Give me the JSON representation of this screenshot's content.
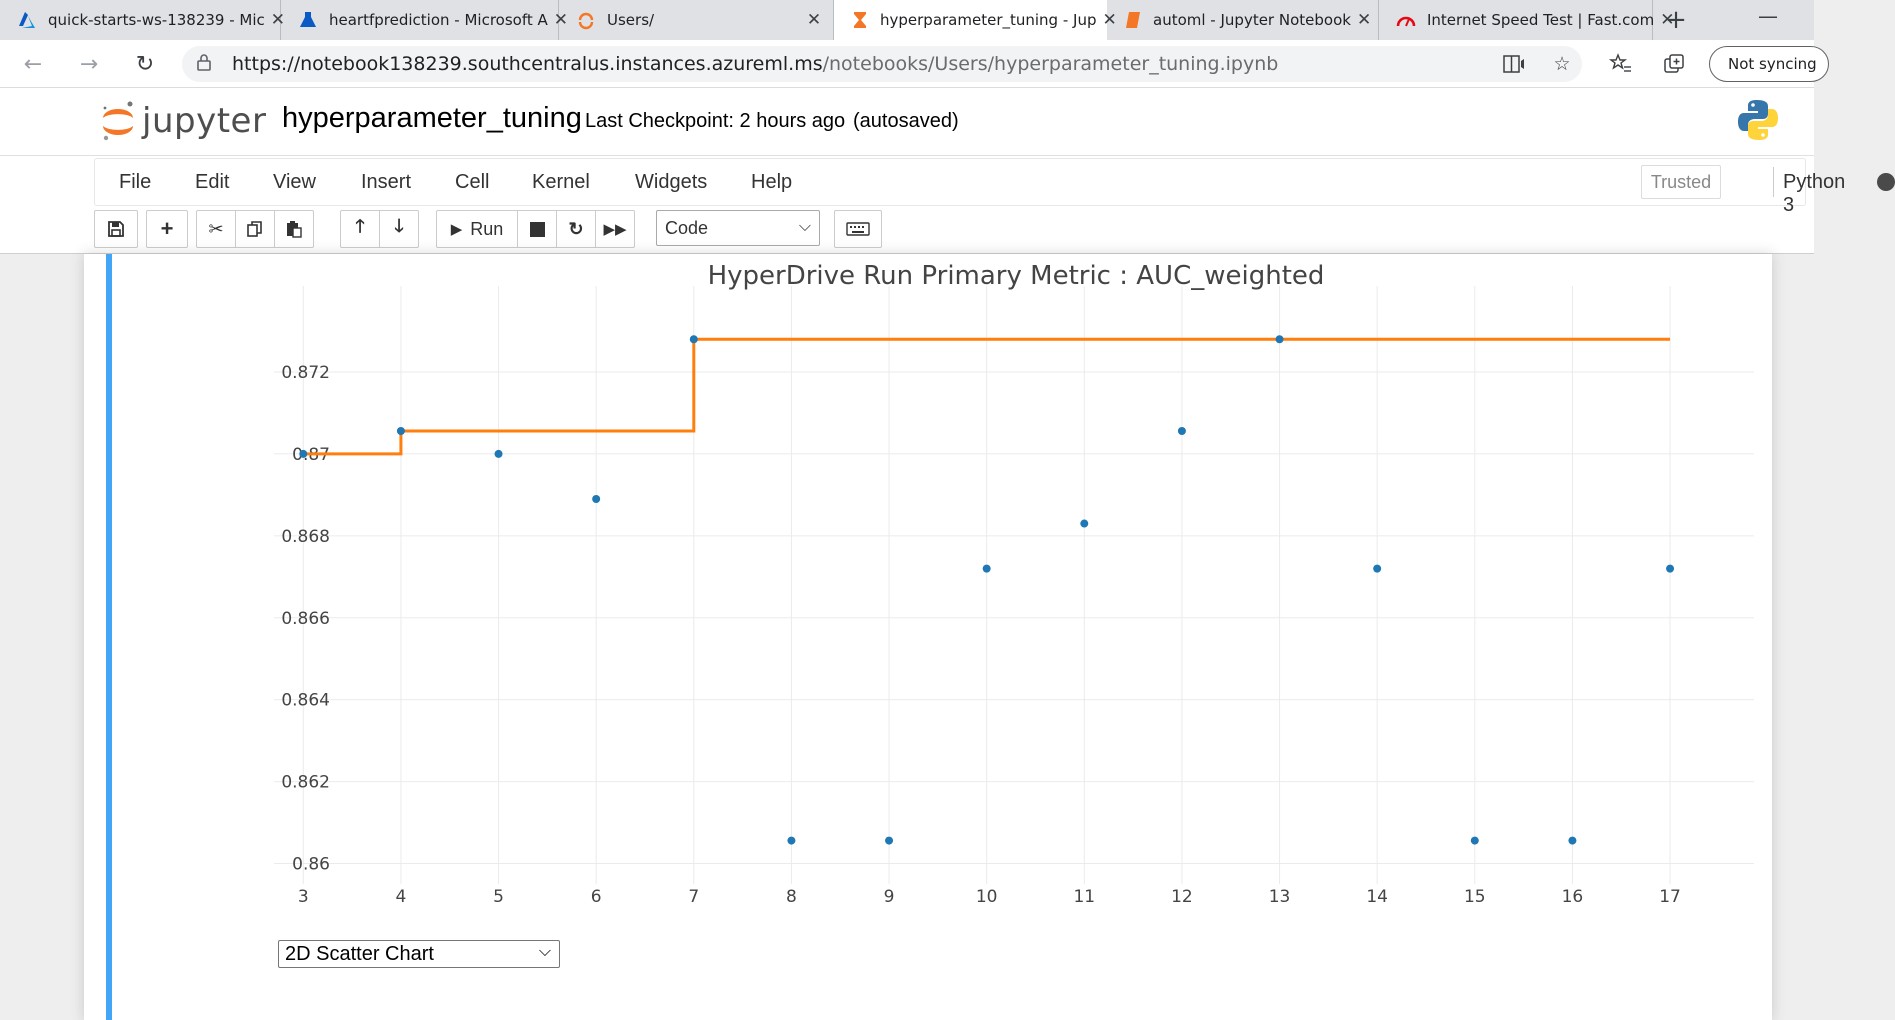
{
  "browser": {
    "tabs": [
      {
        "title": "quick-starts-ws-138239 - Mic",
        "icon": "azure-icon",
        "active": false
      },
      {
        "title": "heartfprediction - Microsoft A",
        "icon": "azureml-flask-icon",
        "active": false
      },
      {
        "title": "Users/",
        "icon": "jupyter-spinner-icon",
        "active": false
      },
      {
        "title": "hyperparameter_tuning - Jup",
        "icon": "hourglass-icon",
        "active": true
      },
      {
        "title": "automl - Jupyter Notebook",
        "icon": "notebook-icon",
        "active": false
      },
      {
        "title": "Internet Speed Test | Fast.com",
        "icon": "speedometer-icon",
        "active": false
      }
    ],
    "url_host": "https://notebook138239.southcentralus.instances.azureml.ms",
    "url_path": "/notebooks/Users/hyperparameter_tuning.ipynb",
    "sync_label": "Not syncing"
  },
  "jupyter": {
    "logo_text": "jupyter",
    "notebook_name": "hyperparameter_tuning",
    "checkpoint": "Last Checkpoint: 2 hours ago",
    "autosaved": "(autosaved)",
    "menu": [
      "File",
      "Edit",
      "View",
      "Insert",
      "Cell",
      "Kernel",
      "Widgets",
      "Help"
    ],
    "trusted": "Trusted",
    "kernel": "Python 3",
    "toolbar": {
      "run_label": "Run",
      "cell_type": "Code"
    }
  },
  "chart_select": {
    "value": "2D Scatter Chart"
  },
  "chart_data": {
    "type": "scatter",
    "title": "HyperDrive Run Primary Metric : AUC_weighted",
    "xlabel": "",
    "ylabel": "",
    "x_ticks": [
      3,
      4,
      5,
      6,
      7,
      8,
      9,
      10,
      11,
      12,
      13,
      14,
      15,
      16,
      17
    ],
    "y_ticks": [
      "0.86",
      "0.862",
      "0.864",
      "0.866",
      "0.868",
      "0.87",
      "0.872"
    ],
    "xlim": [
      2.7,
      17.86
    ],
    "ylim": [
      0.8595,
      0.8741
    ],
    "grid": true,
    "series": [
      {
        "kind": "points",
        "color": "#1f77b4",
        "x": [
          3,
          4,
          5,
          6,
          7,
          8,
          9,
          10,
          11,
          12,
          13,
          14,
          15,
          16,
          17
        ],
        "y": [
          0.87,
          0.87056,
          0.87,
          0.8689,
          0.8728,
          0.86056,
          0.86056,
          0.8672,
          0.8683,
          0.87056,
          0.8728,
          0.8672,
          0.86056,
          0.86056,
          0.8672
        ]
      },
      {
        "kind": "best-so-far-step",
        "color": "#ff7f0e",
        "x": [
          3,
          4,
          5,
          6,
          7,
          8,
          9,
          10,
          11,
          12,
          13,
          14,
          15,
          16,
          17
        ],
        "y": [
          0.87,
          0.87056,
          0.87056,
          0.87056,
          0.8728,
          0.8728,
          0.8728,
          0.8728,
          0.8728,
          0.8728,
          0.8728,
          0.8728,
          0.8728,
          0.8728,
          0.8728
        ]
      }
    ]
  }
}
